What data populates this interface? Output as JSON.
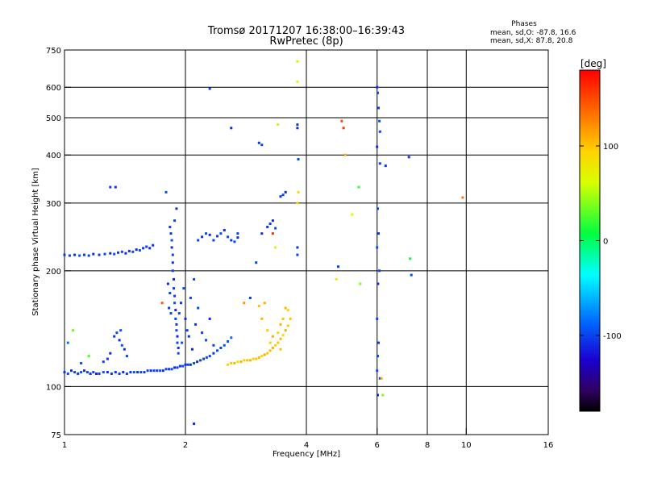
{
  "title_line1": "Tromsø 20171207 16:38:00–16:39:43",
  "title_line2": "RwPretec (8p)",
  "phase_box": {
    "heading": "Phases",
    "line_o": "mean, sd,O: -87.8, 16.6",
    "line_x": "mean, sd,X:  87.8, 20.8"
  },
  "colorbar": {
    "unit_label": "[deg]",
    "range": [
      -180,
      180
    ],
    "tick_labels": [
      "100",
      "0",
      "-100"
    ],
    "tick_values": [
      100,
      0,
      -100
    ]
  },
  "chart_data": {
    "type": "scatter",
    "xlabel": "Frequency [MHz]",
    "ylabel": "Stationary phase Virtual Height [km]",
    "xscale": "log",
    "yscale": "log",
    "xlim": [
      1,
      16
    ],
    "ylim": [
      75,
      750
    ],
    "grid": true,
    "x_ticks": [
      1,
      2,
      4,
      6,
      8,
      10,
      16
    ],
    "x_tick_labels": [
      "1",
      "2",
      "4",
      "6",
      "8",
      "10",
      "16"
    ],
    "y_ticks": [
      75,
      100,
      200,
      300,
      400,
      500,
      600,
      750
    ],
    "y_tick_labels": [
      "75",
      "100",
      "200",
      "300",
      "400",
      "500",
      "600",
      "750"
    ],
    "gridlines_x": [
      2,
      4,
      6,
      8,
      10
    ],
    "gridlines_y": [
      100,
      200,
      300,
      400,
      500,
      600
    ],
    "points": [
      [
        1.0,
        109,
        -105
      ],
      [
        1.02,
        108,
        -95
      ],
      [
        1.04,
        110,
        -110
      ],
      [
        1.06,
        109,
        -100
      ],
      [
        1.08,
        108,
        -105
      ],
      [
        1.1,
        109,
        -95
      ],
      [
        1.12,
        110,
        -110
      ],
      [
        1.14,
        109,
        -100
      ],
      [
        1.16,
        108,
        -105
      ],
      [
        1.18,
        109,
        -98
      ],
      [
        1.2,
        108,
        -112
      ],
      [
        1.22,
        108,
        -104
      ],
      [
        1.25,
        109,
        -95
      ],
      [
        1.28,
        109,
        -110
      ],
      [
        1.31,
        108,
        -100
      ],
      [
        1.34,
        109,
        -105
      ],
      [
        1.37,
        108,
        -98
      ],
      [
        1.4,
        109,
        -112
      ],
      [
        1.43,
        108,
        -100
      ],
      [
        1.46,
        109,
        -105
      ],
      [
        1.49,
        109,
        -95
      ],
      [
        1.52,
        109,
        -110
      ],
      [
        1.55,
        109,
        -100
      ],
      [
        1.58,
        109,
        -105
      ],
      [
        1.61,
        110,
        -98
      ],
      [
        1.64,
        110,
        -112
      ],
      [
        1.67,
        110,
        -100
      ],
      [
        1.7,
        110,
        -105
      ],
      [
        1.73,
        110,
        -95
      ],
      [
        1.76,
        110,
        -110
      ],
      [
        1.79,
        111,
        -100
      ],
      [
        1.82,
        111,
        -105
      ],
      [
        1.85,
        111,
        -98
      ],
      [
        1.88,
        112,
        -112
      ],
      [
        1.91,
        112,
        -100
      ],
      [
        1.94,
        113,
        -105
      ],
      [
        1.97,
        113,
        -95
      ],
      [
        2.0,
        114,
        -110
      ],
      [
        2.03,
        114,
        -100
      ],
      [
        2.06,
        114,
        -105
      ],
      [
        2.1,
        115,
        -98
      ],
      [
        2.14,
        116,
        -112
      ],
      [
        2.18,
        117,
        -100
      ],
      [
        2.22,
        118,
        -105
      ],
      [
        2.26,
        119,
        -95
      ],
      [
        2.3,
        120,
        -100
      ],
      [
        2.35,
        122,
        -105
      ],
      [
        2.4,
        124,
        -95
      ],
      [
        2.45,
        126,
        -100
      ],
      [
        2.5,
        128,
        -90
      ],
      [
        2.55,
        131,
        -95
      ],
      [
        2.6,
        134,
        -85
      ],
      [
        2.55,
        114,
        95
      ],
      [
        2.6,
        115,
        100
      ],
      [
        2.65,
        115,
        105
      ],
      [
        2.7,
        116,
        90
      ],
      [
        2.75,
        116,
        110
      ],
      [
        2.8,
        117,
        98
      ],
      [
        2.85,
        117,
        102
      ],
      [
        2.9,
        117,
        108
      ],
      [
        2.95,
        118,
        95
      ],
      [
        3.0,
        118,
        100
      ],
      [
        3.05,
        119,
        105
      ],
      [
        3.1,
        120,
        90
      ],
      [
        3.15,
        121,
        110
      ],
      [
        3.2,
        122,
        98
      ],
      [
        3.25,
        124,
        102
      ],
      [
        3.3,
        126,
        108
      ],
      [
        3.35,
        128,
        95
      ],
      [
        3.4,
        130,
        100
      ],
      [
        3.45,
        133,
        105
      ],
      [
        3.5,
        136,
        90
      ],
      [
        3.55,
        140,
        110
      ],
      [
        3.6,
        144,
        98
      ],
      [
        3.65,
        150,
        102
      ],
      [
        3.6,
        158,
        95
      ],
      [
        3.55,
        160,
        108
      ],
      [
        3.5,
        150,
        100
      ],
      [
        3.45,
        145,
        105
      ],
      [
        3.4,
        138,
        95
      ],
      [
        3.3,
        135,
        110
      ],
      [
        3.2,
        140,
        98
      ],
      [
        3.1,
        150,
        105
      ],
      [
        3.05,
        162,
        100
      ],
      [
        3.15,
        165,
        108
      ],
      [
        3.25,
        130,
        95
      ],
      [
        3.45,
        125,
        102
      ],
      [
        1.0,
        220,
        -105
      ],
      [
        1.03,
        219,
        -100
      ],
      [
        1.06,
        220,
        -110
      ],
      [
        1.09,
        219,
        -95
      ],
      [
        1.12,
        220,
        -105
      ],
      [
        1.15,
        219,
        -100
      ],
      [
        1.18,
        221,
        -110
      ],
      [
        1.22,
        220,
        -105
      ],
      [
        1.26,
        221,
        -100
      ],
      [
        1.3,
        222,
        -110
      ],
      [
        1.33,
        221,
        -95
      ],
      [
        1.36,
        223,
        -105
      ],
      [
        1.39,
        224,
        -100
      ],
      [
        1.42,
        222,
        -110
      ],
      [
        1.45,
        225,
        -105
      ],
      [
        1.48,
        224,
        -100
      ],
      [
        1.51,
        227,
        -110
      ],
      [
        1.54,
        226,
        -95
      ],
      [
        1.57,
        229,
        -105
      ],
      [
        1.6,
        231,
        -100
      ],
      [
        1.63,
        229,
        -110
      ],
      [
        1.66,
        233,
        -105
      ],
      [
        1.83,
        260,
        -100
      ],
      [
        1.84,
        250,
        -105
      ],
      [
        1.85,
        240,
        -95
      ],
      [
        1.85,
        230,
        -110
      ],
      [
        1.86,
        220,
        -100
      ],
      [
        1.86,
        210,
        -105
      ],
      [
        1.86,
        200,
        -98
      ],
      [
        1.87,
        190,
        -110
      ],
      [
        1.87,
        180,
        -100
      ],
      [
        1.88,
        172,
        -105
      ],
      [
        1.88,
        165,
        -95
      ],
      [
        1.89,
        158,
        -110
      ],
      [
        1.89,
        150,
        -100
      ],
      [
        1.9,
        145,
        -105
      ],
      [
        1.9,
        140,
        -98
      ],
      [
        1.91,
        135,
        -110
      ],
      [
        1.91,
        130,
        -100
      ],
      [
        1.92,
        126,
        -105
      ],
      [
        1.92,
        122,
        -95
      ],
      [
        1.83,
        175,
        -100
      ],
      [
        1.82,
        160,
        -105
      ],
      [
        1.84,
        155,
        -98
      ],
      [
        1.81,
        185,
        -110
      ],
      [
        1.88,
        270,
        -100
      ],
      [
        1.9,
        290,
        -105
      ],
      [
        1.79,
        320,
        -95
      ],
      [
        1.93,
        155,
        -100
      ],
      [
        1.95,
        165,
        -105
      ],
      [
        1.98,
        180,
        -95
      ],
      [
        2.0,
        150,
        -110
      ],
      [
        2.02,
        140,
        -100
      ],
      [
        2.04,
        135,
        -105
      ],
      [
        2.06,
        170,
        -98
      ],
      [
        2.08,
        125,
        -110
      ],
      [
        2.1,
        190,
        -100
      ],
      [
        2.12,
        145,
        -105
      ],
      [
        1.96,
        130,
        -95
      ],
      [
        2.15,
        160,
        -100
      ],
      [
        2.2,
        138,
        -105
      ],
      [
        2.25,
        132,
        -95
      ],
      [
        2.3,
        150,
        -110
      ],
      [
        2.35,
        128,
        -100
      ],
      [
        1.33,
        135,
        -105
      ],
      [
        1.35,
        138,
        -100
      ],
      [
        1.37,
        132,
        -110
      ],
      [
        1.39,
        128,
        -95
      ],
      [
        1.41,
        125,
        -105
      ],
      [
        1.43,
        120,
        -100
      ],
      [
        1.3,
        122,
        -110
      ],
      [
        1.28,
        118,
        -105
      ],
      [
        1.25,
        116,
        -100
      ],
      [
        1.38,
        140,
        -95
      ],
      [
        2.15,
        240,
        -100
      ],
      [
        2.2,
        245,
        -105
      ],
      [
        2.25,
        250,
        -95
      ],
      [
        2.3,
        248,
        -110
      ],
      [
        2.35,
        240,
        -100
      ],
      [
        2.4,
        246,
        -105
      ],
      [
        2.45,
        250,
        -95
      ],
      [
        2.5,
        255,
        -110
      ],
      [
        2.55,
        245,
        -100
      ],
      [
        2.6,
        240,
        -105
      ],
      [
        2.65,
        238,
        -95
      ],
      [
        2.7,
        244,
        -110
      ],
      [
        3.2,
        260,
        -105
      ],
      [
        3.25,
        265,
        -100
      ],
      [
        3.3,
        270,
        -110
      ],
      [
        3.35,
        258,
        -95
      ],
      [
        3.45,
        312,
        -105
      ],
      [
        3.5,
        315,
        -100
      ],
      [
        3.55,
        320,
        -110
      ],
      [
        3.1,
        250,
        -105
      ],
      [
        3.8,
        700,
        55
      ],
      [
        3.8,
        620,
        60
      ],
      [
        3.8,
        480,
        -100
      ],
      [
        3.8,
        470,
        -110
      ],
      [
        3.82,
        390,
        -100
      ],
      [
        3.82,
        320,
        90
      ],
      [
        3.8,
        300,
        95
      ],
      [
        3.8,
        230,
        -105
      ],
      [
        3.8,
        220,
        -100
      ],
      [
        4.9,
        490,
        150
      ],
      [
        4.95,
        470,
        160
      ],
      [
        5.0,
        400,
        110
      ],
      [
        5.2,
        280,
        60
      ],
      [
        5.4,
        330,
        20
      ],
      [
        4.8,
        205,
        -100
      ],
      [
        4.75,
        190,
        80
      ],
      [
        5.45,
        185,
        40
      ],
      [
        6.0,
        600,
        -110
      ],
      [
        6.02,
        580,
        -100
      ],
      [
        6.05,
        530,
        -105
      ],
      [
        6.08,
        490,
        -95
      ],
      [
        6.1,
        460,
        -100
      ],
      [
        6.0,
        420,
        -110
      ],
      [
        6.02,
        290,
        -100
      ],
      [
        6.05,
        250,
        -105
      ],
      [
        6.0,
        230,
        -95
      ],
      [
        6.08,
        200,
        -100
      ],
      [
        6.03,
        185,
        -110
      ],
      [
        6.0,
        150,
        -100
      ],
      [
        6.05,
        130,
        -105
      ],
      [
        6.02,
        120,
        -100
      ],
      [
        6.0,
        110,
        -95
      ],
      [
        6.1,
        105,
        -100
      ],
      [
        6.02,
        95,
        -110
      ],
      [
        6.1,
        380,
        -100
      ],
      [
        6.3,
        375,
        -105
      ],
      [
        6.15,
        105,
        110
      ],
      [
        6.2,
        95,
        40
      ],
      [
        7.2,
        395,
        -105
      ],
      [
        7.3,
        195,
        -100
      ],
      [
        7.25,
        215,
        10
      ],
      [
        9.8,
        310,
        130
      ],
      [
        2.3,
        595,
        -100
      ],
      [
        2.6,
        470,
        -110
      ],
      [
        3.05,
        430,
        -105
      ],
      [
        3.1,
        425,
        -100
      ],
      [
        3.4,
        480,
        55
      ],
      [
        1.3,
        330,
        -100
      ],
      [
        1.34,
        330,
        -105
      ],
      [
        1.05,
        140,
        30
      ],
      [
        1.02,
        130,
        -80
      ],
      [
        1.15,
        120,
        25
      ],
      [
        1.1,
        115,
        -95
      ],
      [
        1.75,
        165,
        145
      ],
      [
        2.1,
        80,
        -110
      ],
      [
        2.7,
        250,
        -100
      ],
      [
        3.3,
        250,
        160
      ],
      [
        3.35,
        230,
        70
      ],
      [
        2.9,
        170,
        -100
      ],
      [
        2.8,
        165,
        120
      ],
      [
        3.0,
        210,
        -100
      ]
    ]
  }
}
